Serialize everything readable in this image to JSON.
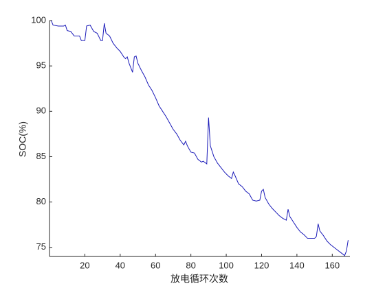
{
  "chart_data": {
    "type": "line",
    "x_label": "放电循环次数",
    "y_label": "SOC(%)",
    "x": [
      1,
      2,
      5,
      8,
      9,
      10,
      12,
      14,
      17,
      18,
      20,
      21,
      23,
      25,
      27,
      28,
      29,
      30,
      31,
      32,
      34,
      36,
      38,
      40,
      42,
      43,
      44,
      45,
      46,
      47,
      48,
      49,
      50,
      52,
      54,
      56,
      58,
      60,
      62,
      64,
      66,
      68,
      70,
      72,
      74,
      76,
      77,
      78,
      80,
      82,
      84,
      86,
      87,
      89,
      90,
      91,
      93,
      95,
      97,
      99,
      101,
      103,
      104,
      105,
      107,
      109,
      111,
      113,
      115,
      117,
      119,
      120,
      121,
      122,
      124,
      126,
      128,
      130,
      132,
      134,
      135,
      136,
      138,
      140,
      142,
      144,
      146,
      148,
      150,
      151,
      152,
      153,
      155,
      157,
      159,
      161,
      163,
      165,
      167,
      168,
      169
    ],
    "series": [
      {
        "name": "SOC",
        "color": "#1a1ab8",
        "values": [
          100,
          99.5,
          99.4,
          99.4,
          99.5,
          98.9,
          98.8,
          98.3,
          98.3,
          97.8,
          97.8,
          99.4,
          99.5,
          98.8,
          98.6,
          98.2,
          97.8,
          97.8,
          99.7,
          98.6,
          98.3,
          97.5,
          97.0,
          96.6,
          96.0,
          95.8,
          96.0,
          95.3,
          94.8,
          94.3,
          96.0,
          96.1,
          95.3,
          94.5,
          93.8,
          92.9,
          92.3,
          91.5,
          90.6,
          90.0,
          89.4,
          88.7,
          88.0,
          87.5,
          86.8,
          86.3,
          86.7,
          86.2,
          85.5,
          85.4,
          84.7,
          84.4,
          84.5,
          84.2,
          89.3,
          86.2,
          85.0,
          84.3,
          83.8,
          83.3,
          82.9,
          82.6,
          83.3,
          82.9,
          82.0,
          81.7,
          81.2,
          80.9,
          80.2,
          80.1,
          80.2,
          81.2,
          81.4,
          80.5,
          79.8,
          79.3,
          78.9,
          78.5,
          78.2,
          78.0,
          79.2,
          78.4,
          77.8,
          77.2,
          76.7,
          76.4,
          76.0,
          76.0,
          76.0,
          76.2,
          77.6,
          76.8,
          76.3,
          75.7,
          75.3,
          75.0,
          74.7,
          74.4,
          74.1,
          74.6,
          75.8
        ]
      }
    ],
    "xlim": [
      0,
      170
    ],
    "ylim": [
      74,
      100
    ],
    "xticks": [
      20,
      40,
      60,
      80,
      100,
      120,
      140,
      160
    ],
    "yticks": [
      75,
      80,
      85,
      90,
      95,
      100
    ]
  }
}
